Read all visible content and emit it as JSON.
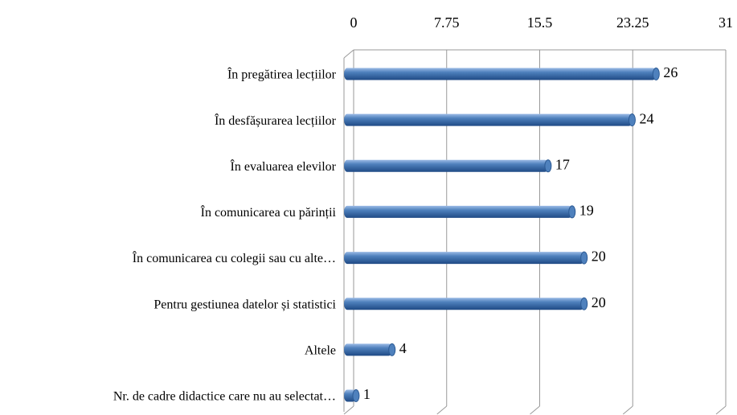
{
  "chart_data": {
    "type": "bar",
    "orientation": "horizontal",
    "categories": [
      "În pregătirea lecțiilor",
      "În desfășurarea lecțiilor",
      "În evaluarea elevilor",
      "În comunicarea cu părinții",
      "În comunicarea cu colegii sau cu alte…",
      "Pentru gestiunea datelor și statistici",
      "Altele",
      "Nr.  de cadre didactice care nu au selectat…"
    ],
    "values": [
      26,
      24,
      17,
      19,
      20,
      20,
      4,
      1
    ],
    "color": "#4f81bd",
    "xlim": [
      0,
      31
    ],
    "xticks": [
      0,
      7.75,
      15.5,
      23.25,
      31
    ],
    "grid": true
  }
}
